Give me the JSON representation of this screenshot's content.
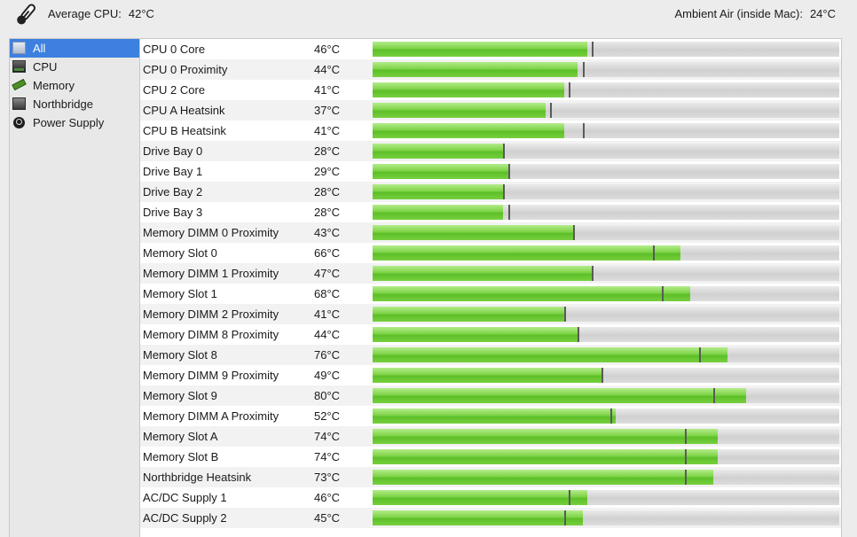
{
  "header": {
    "avg_cpu_label": "Average CPU:",
    "avg_cpu_value": "42°C",
    "ambient_label": "Ambient Air (inside Mac):",
    "ambient_value": "24°C"
  },
  "sidebar": {
    "items": [
      {
        "label": "All",
        "icon": "all-sensors-icon",
        "selected": true
      },
      {
        "label": "CPU",
        "icon": "cpu-icon"
      },
      {
        "label": "Memory",
        "icon": "memory-icon"
      },
      {
        "label": "Northbridge",
        "icon": "northbridge-icon"
      },
      {
        "label": "Power Supply",
        "icon": "power-supply-icon"
      }
    ]
  },
  "scale": {
    "max_temp": 100
  },
  "sensors": [
    {
      "name": "CPU 0 Core",
      "temp": "46°C",
      "value": 46,
      "peak": 47
    },
    {
      "name": "CPU 0 Proximity",
      "temp": "44°C",
      "value": 44,
      "peak": 45
    },
    {
      "name": "CPU 2 Core",
      "temp": "41°C",
      "value": 41,
      "peak": 42
    },
    {
      "name": "CPU A Heatsink",
      "temp": "37°C",
      "value": 37,
      "peak": 38
    },
    {
      "name": "CPU B Heatsink",
      "temp": "41°C",
      "value": 41,
      "peak": 45
    },
    {
      "name": "Drive Bay 0",
      "temp": "28°C",
      "value": 28,
      "peak": 28
    },
    {
      "name": "Drive Bay 1",
      "temp": "29°C",
      "value": 29,
      "peak": 29
    },
    {
      "name": "Drive Bay 2",
      "temp": "28°C",
      "value": 28,
      "peak": 28
    },
    {
      "name": "Drive Bay 3",
      "temp": "28°C",
      "value": 28,
      "peak": 29
    },
    {
      "name": "Memory DIMM 0 Proximity",
      "temp": "43°C",
      "value": 43,
      "peak": 43
    },
    {
      "name": "Memory Slot 0",
      "temp": "66°C",
      "value": 66,
      "peak": 60
    },
    {
      "name": "Memory DIMM 1 Proximity",
      "temp": "47°C",
      "value": 47,
      "peak": 47
    },
    {
      "name": "Memory Slot 1",
      "temp": "68°C",
      "value": 68,
      "peak": 62
    },
    {
      "name": "Memory DIMM 2 Proximity",
      "temp": "41°C",
      "value": 41,
      "peak": 41
    },
    {
      "name": "Memory DIMM 8 Proximity",
      "temp": "44°C",
      "value": 44,
      "peak": 44
    },
    {
      "name": "Memory Slot 8",
      "temp": "76°C",
      "value": 76,
      "peak": 70
    },
    {
      "name": "Memory DIMM 9 Proximity",
      "temp": "49°C",
      "value": 49,
      "peak": 49
    },
    {
      "name": "Memory Slot 9",
      "temp": "80°C",
      "value": 80,
      "peak": 73
    },
    {
      "name": "Memory DIMM A Proximity",
      "temp": "52°C",
      "value": 52,
      "peak": 51
    },
    {
      "name": "Memory Slot A",
      "temp": "74°C",
      "value": 74,
      "peak": 67
    },
    {
      "name": "Memory Slot B",
      "temp": "74°C",
      "value": 74,
      "peak": 67
    },
    {
      "name": "Northbridge Heatsink",
      "temp": "73°C",
      "value": 73,
      "peak": 67
    },
    {
      "name": "AC/DC Supply 1",
      "temp": "46°C",
      "value": 46,
      "peak": 42
    },
    {
      "name": "AC/DC Supply 2",
      "temp": "45°C",
      "value": 45,
      "peak": 41
    }
  ]
}
